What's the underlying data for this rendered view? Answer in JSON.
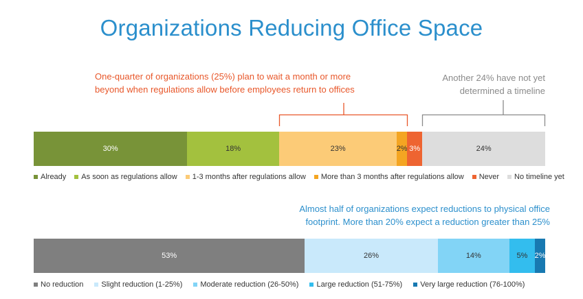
{
  "title": "Organizations Reducing Office Space",
  "annotations": {
    "orange_line1": "One-quarter of organizations (25%) plan to wait a month or more",
    "orange_line2": "beyond when regulations allow before employees return to offices",
    "gray_line1": "Another 24% have not yet",
    "gray_line2": "determined a timeline",
    "blue_line1": "Almost half of organizations expect reductions to physical office",
    "blue_line2": "footprint. More than 20% expect a reduction greater than 25%"
  },
  "colors": {
    "title": "#2b8fcc",
    "orange_note": "#e8572a",
    "gray_note": "#8a8a8a",
    "blue_note": "#2b8fcc"
  },
  "chart_data": [
    {
      "type": "bar",
      "orientation": "horizontal-stacked",
      "series": [
        {
          "name": "Already",
          "value": 30,
          "label": "30%",
          "color": "#789338"
        },
        {
          "name": "As soon as regulations allow",
          "value": 18,
          "label": "18%",
          "color": "#a3c13e"
        },
        {
          "name": "1-3 months after regulations allow",
          "value": 23,
          "label": "23%",
          "color": "#fccb77"
        },
        {
          "name": "More than 3 months after regulations allow",
          "value": 2,
          "label": "2%",
          "color": "#f4a522"
        },
        {
          "name": "Never",
          "value": 3,
          "label": "3%",
          "color": "#ee6431"
        },
        {
          "name": "No timeline yet",
          "value": 24,
          "label": "24%",
          "color": "#dddddd"
        }
      ]
    },
    {
      "type": "bar",
      "orientation": "horizontal-stacked",
      "series": [
        {
          "name": "No reduction",
          "value": 53,
          "label": "53%",
          "color": "#7f7f7f"
        },
        {
          "name": "Slight reduction (1-25%)",
          "value": 26,
          "label": "26%",
          "color": "#c9e9fb"
        },
        {
          "name": "Moderate reduction (26-50%)",
          "value": 14,
          "label": "14%",
          "color": "#82d4f6"
        },
        {
          "name": "Large reduction (51-75%)",
          "value": 5,
          "label": "5%",
          "color": "#33bdee"
        },
        {
          "name": "Very large reduction (76-100%)",
          "value": 2,
          "label": "2%",
          "color": "#1879b1"
        }
      ]
    }
  ]
}
